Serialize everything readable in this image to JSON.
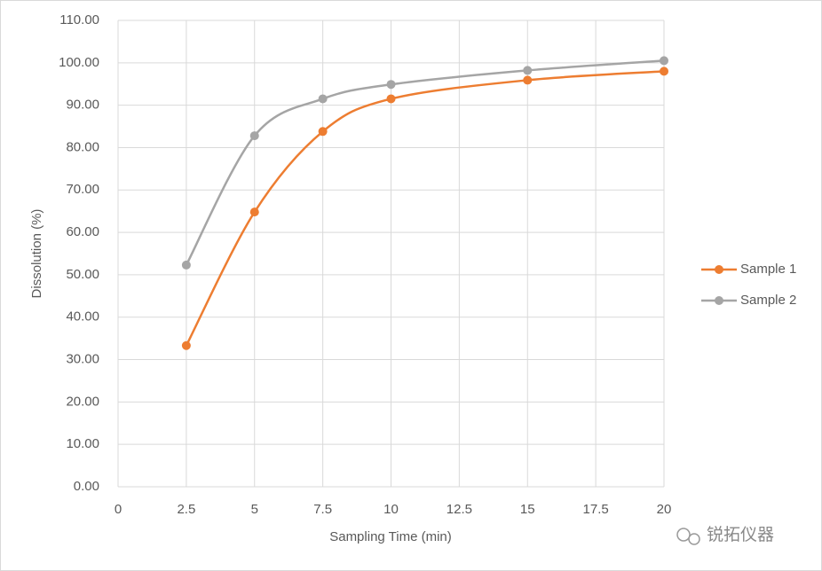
{
  "chart_data": {
    "type": "line",
    "x_label": "Sampling Time (min)",
    "y_label": "Dissolution (%)",
    "x": [
      2.5,
      5,
      7.5,
      10,
      15,
      20
    ],
    "series": [
      {
        "name": "Sample 1",
        "color": "#ed7d31",
        "values": [
          33.3,
          64.8,
          83.8,
          91.5,
          95.9,
          98.0
        ]
      },
      {
        "name": "Sample 2",
        "color": "#a5a5a5",
        "values": [
          52.3,
          82.8,
          91.5,
          94.9,
          98.2,
          100.5
        ]
      }
    ],
    "xlim": [
      0,
      20
    ],
    "xticks": [
      0,
      2.5,
      5,
      7.5,
      10,
      12.5,
      15,
      17.5,
      20
    ],
    "ylim": [
      0,
      110
    ],
    "yticks": [
      {
        "value": 0,
        "label": "0.00"
      },
      {
        "value": 10,
        "label": "10.00"
      },
      {
        "value": 20,
        "label": "20.00"
      },
      {
        "value": 30,
        "label": "30.00"
      },
      {
        "value": 40,
        "label": "40.00"
      },
      {
        "value": 50,
        "label": "50.00"
      },
      {
        "value": 60,
        "label": "60.00"
      },
      {
        "value": 70,
        "label": "70.00"
      },
      {
        "value": 80,
        "label": "80.00"
      },
      {
        "value": 90,
        "label": "90.00"
      },
      {
        "value": 100,
        "label": "100.00"
      },
      {
        "value": 110,
        "label": "110.00"
      }
    ],
    "grid": true,
    "smooth": true,
    "legend": "right",
    "watermark": "锐拓仪器"
  }
}
